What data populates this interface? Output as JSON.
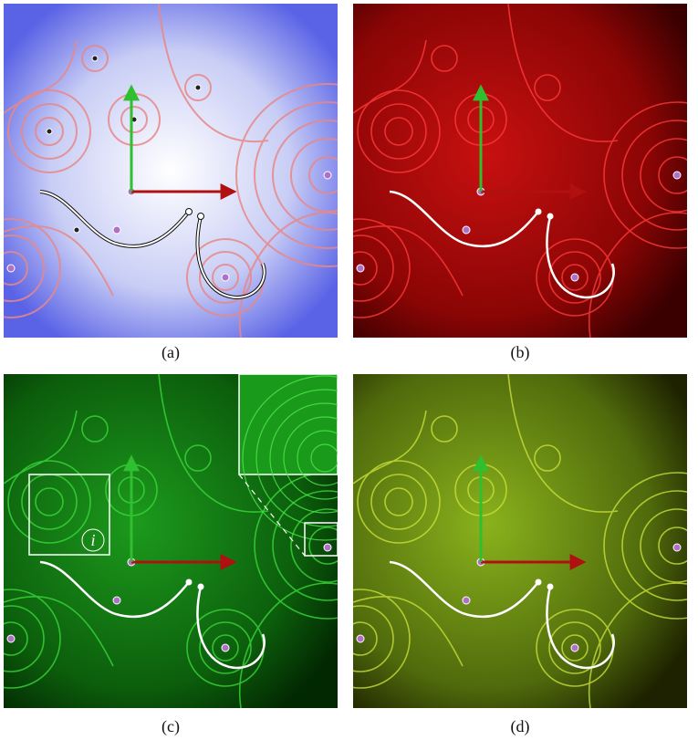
{
  "figure": {
    "panels": [
      {
        "id": "a",
        "caption": "(a)",
        "colormap": "blue-white-red"
      },
      {
        "id": "b",
        "caption": "(b)",
        "colormap": "black-red"
      },
      {
        "id": "c",
        "caption": "(c)",
        "colormap": "black-green",
        "inset_label": "i"
      },
      {
        "id": "d",
        "caption": "(d)",
        "colormap": "red-green"
      }
    ]
  },
  "colors": {
    "axis_x": "#b01010",
    "axis_y": "#2fbf2f",
    "stroke_curve": "#ffffff",
    "marker": "#b070c8",
    "inset_box": "#ffffff"
  }
}
